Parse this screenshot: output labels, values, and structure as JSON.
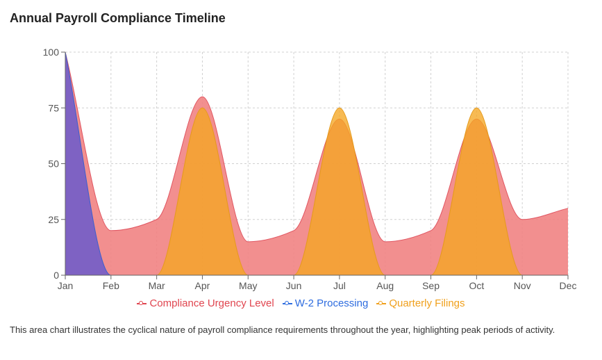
{
  "title": "Annual Payroll Compliance Timeline",
  "caption": "This area chart illustrates the cyclical nature of payroll compliance requirements throughout the year, highlighting peak periods of activity.",
  "colors": {
    "urgency": "#f08080",
    "urgency_stroke": "#e05561",
    "w2": "#6a5acd",
    "w2_stroke": "#3a5fcd",
    "quarterly": "#f5a623",
    "quarterly_stroke": "#e59a1b",
    "grid": "#d0d0d0",
    "axis": "#666666"
  },
  "legend": [
    {
      "key": "urgency",
      "label": "Compliance Urgency Level",
      "color": "#e0454f"
    },
    {
      "key": "w2",
      "label": "W-2 Processing",
      "color": "#2d6cdf"
    },
    {
      "key": "quarterly",
      "label": "Quarterly Filings",
      "color": "#f0a01c"
    }
  ],
  "chart_data": {
    "type": "area",
    "categories": [
      "Jan",
      "Feb",
      "Mar",
      "Apr",
      "May",
      "Jun",
      "Jul",
      "Aug",
      "Sep",
      "Oct",
      "Nov",
      "Dec"
    ],
    "ylim": [
      0,
      100
    ],
    "yticks": [
      0,
      25,
      50,
      75,
      100
    ],
    "grid": true,
    "legend_position": "bottom",
    "series": [
      {
        "name": "Compliance Urgency Level",
        "key": "urgency",
        "values": [
          100,
          20,
          25,
          80,
          15,
          20,
          70,
          15,
          20,
          70,
          25,
          30
        ]
      },
      {
        "name": "W-2 Processing",
        "key": "w2",
        "values": [
          100,
          0,
          0,
          0,
          0,
          0,
          0,
          0,
          0,
          0,
          0,
          0
        ]
      },
      {
        "name": "Quarterly Filings",
        "key": "quarterly",
        "values": [
          0,
          0,
          0,
          75,
          0,
          0,
          75,
          0,
          0,
          75,
          0,
          0
        ]
      }
    ]
  }
}
